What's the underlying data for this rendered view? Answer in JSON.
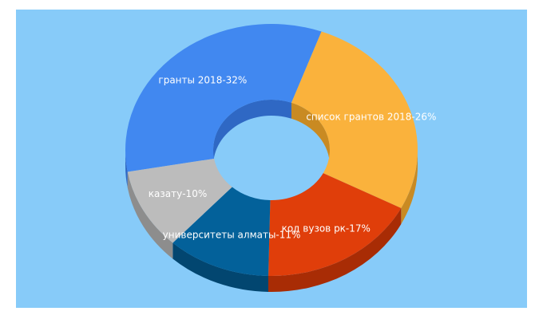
{
  "chart_data": {
    "type": "pie",
    "variant": "3d-donut",
    "background": "#87cbf9",
    "slices": [
      {
        "label": "гранты 2018",
        "value": 32,
        "text": "гранты 2018-32%",
        "color": "#4188f0",
        "side_color": "#2f68c4"
      },
      {
        "label": "список грантов 2018",
        "value": 26,
        "text": "список грантов 2018-26%",
        "color": "#fab23c",
        "side_color": "#c98a22"
      },
      {
        "label": "код вузов рк",
        "value": 17,
        "text": "код вузов рк-17%",
        "color": "#e03e0a",
        "side_color": "#a82c05"
      },
      {
        "label": "университеты алматы",
        "value": 11,
        "text": "университеты алматы-11%",
        "color": "#03619a",
        "side_color": "#024670"
      },
      {
        "label": "казату",
        "value": 10,
        "text": "казату-10%",
        "color": "#bcbcbc",
        "side_color": "#8d8d8d"
      }
    ]
  }
}
